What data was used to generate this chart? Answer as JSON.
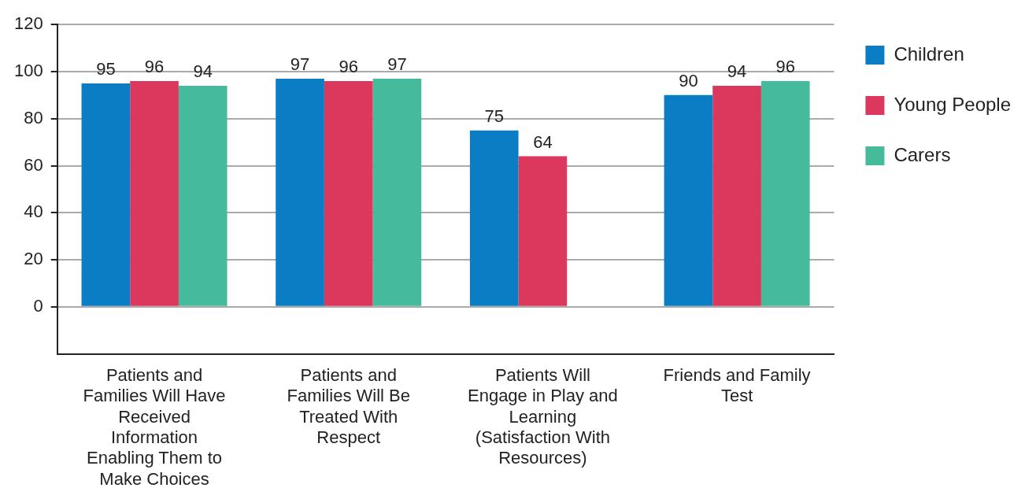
{
  "chart_data": {
    "type": "bar",
    "categories": [
      "Patients and Families Will Have Received Information Enabling Them to Make Choices",
      "Patients and Families Will Be Treated With Respect",
      "Patients Will Engage in Play and Learning (Satisfaction With Resources)",
      "Friends and Family Test"
    ],
    "series": [
      {
        "name": "Children",
        "color": "#0a7dc4",
        "values": [
          95,
          97,
          75,
          90
        ]
      },
      {
        "name": "Young People",
        "color": "#dc375c",
        "values": [
          96,
          96,
          64,
          94
        ]
      },
      {
        "name": "Carers",
        "color": "#46bb9b",
        "values": [
          94,
          97,
          null,
          96
        ]
      }
    ],
    "ylim": [
      -20,
      120
    ],
    "yticks": [
      0,
      20,
      40,
      60,
      80,
      100,
      120
    ],
    "grid": "y",
    "legend": "top right",
    "data_labels": true
  }
}
